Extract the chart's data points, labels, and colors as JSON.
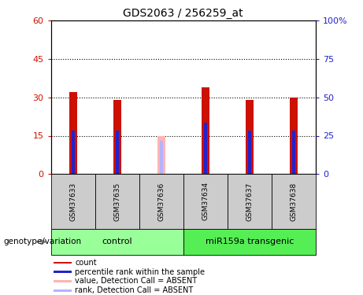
{
  "title": "GDS2063 / 256259_at",
  "samples": [
    "GSM37633",
    "GSM37635",
    "GSM37636",
    "GSM37634",
    "GSM37637",
    "GSM37638"
  ],
  "groups": [
    "control",
    "control",
    "control",
    "miR159a transgenic",
    "miR159a transgenic",
    "miR159a transgenic"
  ],
  "count_values": [
    32,
    29,
    0,
    34,
    29,
    30
  ],
  "rank_values": [
    17,
    17,
    0,
    20,
    17,
    17
  ],
  "absent_count": [
    0,
    0,
    15,
    0,
    0,
    0
  ],
  "absent_rank": [
    0,
    0,
    13,
    0,
    0,
    0
  ],
  "ylim_left": [
    0,
    60
  ],
  "ylim_right": [
    0,
    100
  ],
  "yticks_left": [
    0,
    15,
    30,
    45,
    60
  ],
  "ytick_labels_left": [
    "0",
    "15",
    "30",
    "45",
    "60"
  ],
  "yticks_right": [
    0,
    25,
    50,
    75,
    100
  ],
  "ytick_labels_right": [
    "0",
    "25",
    "50",
    "75",
    "100%"
  ],
  "count_color": "#cc1100",
  "rank_color": "#2222cc",
  "absent_count_color": "#ffb3b3",
  "absent_rank_color": "#b3b3ff",
  "group_colors": {
    "control": "#99ff99",
    "miR159a transgenic": "#55ee55"
  },
  "group_label": "genotype/variation",
  "legend_items": [
    {
      "label": "count",
      "color": "#cc1100"
    },
    {
      "label": "percentile rank within the sample",
      "color": "#2222cc"
    },
    {
      "label": "value, Detection Call = ABSENT",
      "color": "#ffb3b3"
    },
    {
      "label": "rank, Detection Call = ABSENT",
      "color": "#b3b3ff"
    }
  ],
  "background_color": "#ffffff",
  "dotted_lines": [
    15,
    30,
    45
  ],
  "bar_width": 0.18,
  "rank_bar_width": 0.07
}
